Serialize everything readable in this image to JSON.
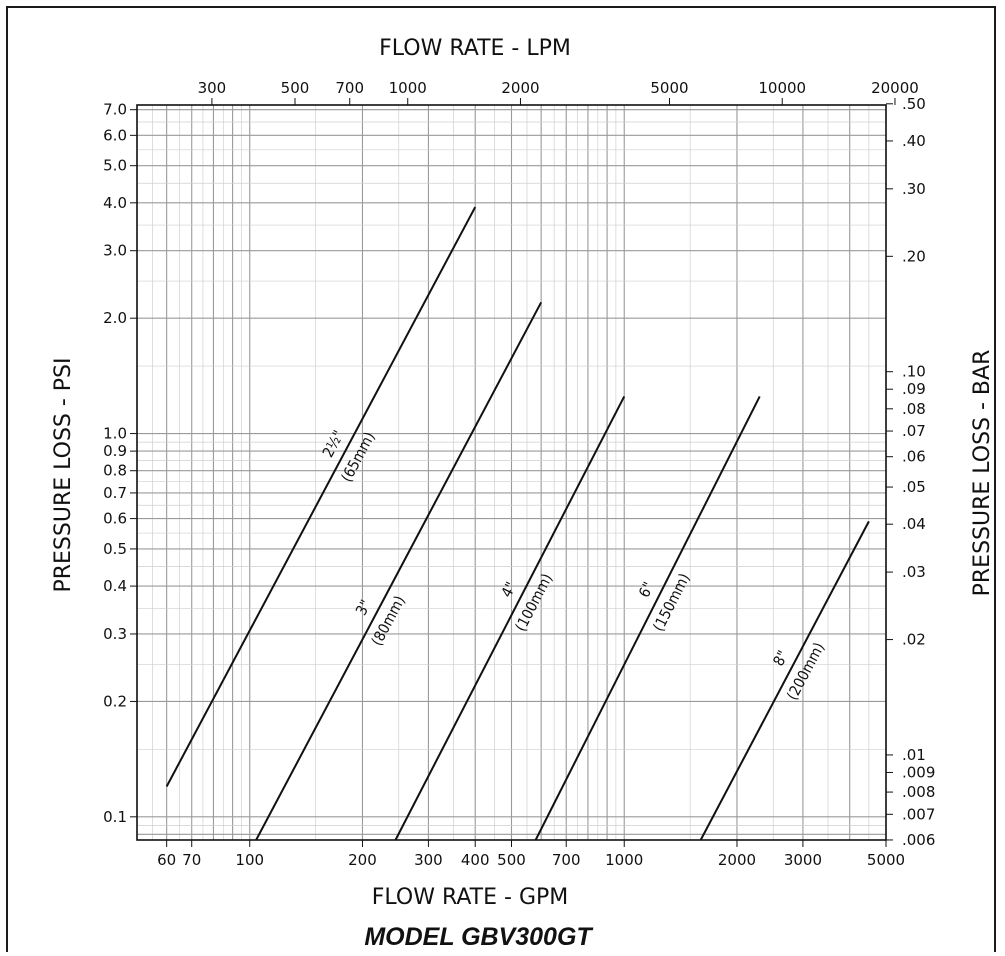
{
  "chart_data": {
    "type": "line",
    "title": "MODEL GBV300GT",
    "xlabel": "FLOW RATE - GPM",
    "ylabel": "PRESSURE LOSS - PSI",
    "x2label": "FLOW RATE - LPM",
    "y2label": "PRESSURE LOSS - BAR",
    "x_scale": "log",
    "y_scale": "log",
    "xlim": [
      50,
      5000
    ],
    "ylim": [
      0.087,
      7.2
    ],
    "grid": true,
    "x_ticks": [
      60,
      70,
      100,
      200,
      300,
      400,
      500,
      700,
      1000,
      2000,
      3000,
      5000
    ],
    "x_tick_labels": [
      "60",
      "70",
      "100",
      "200",
      "300",
      "400",
      "500",
      "700",
      "1000",
      "2000",
      "3000",
      "5000"
    ],
    "y_ticks": [
      0.1,
      0.2,
      0.3,
      0.4,
      0.5,
      0.6,
      0.7,
      0.8,
      0.9,
      1.0,
      2.0,
      3.0,
      4.0,
      5.0,
      6.0,
      7.0
    ],
    "y_tick_labels": [
      "0.1",
      "0.2",
      "0.3",
      "0.4",
      "0.5",
      "0.6",
      "0.7",
      "0.8",
      "0.9",
      "1.0",
      "2.0",
      "3.0",
      "4.0",
      "5.0",
      "6.0",
      "7.0"
    ],
    "x2_ticks": [
      300,
      500,
      700,
      1000,
      2000,
      5000,
      10000,
      20000
    ],
    "x2_tick_labels": [
      "300",
      "500",
      "700",
      "1000",
      "2000",
      "5000",
      "10000",
      "20000"
    ],
    "y2_ticks": [
      0.006,
      0.007,
      0.008,
      0.009,
      0.01,
      0.02,
      0.03,
      0.04,
      0.05,
      0.06,
      0.07,
      0.08,
      0.09,
      0.1,
      0.2,
      0.3,
      0.4,
      0.5
    ],
    "y2_tick_labels": [
      ".006",
      ".007",
      ".008",
      ".009",
      ".01",
      ".02",
      ".03",
      ".04",
      ".05",
      ".06",
      ".07",
      ".08",
      ".09",
      ".10",
      ".20",
      ".30",
      ".40",
      ".50"
    ],
    "series": [
      {
        "name": "2½\"",
        "name2": "(65mm)",
        "x": [
          60,
          400
        ],
        "y": [
          0.12,
          3.9
        ]
      },
      {
        "name": "3\"",
        "name2": "(80mm)",
        "x": [
          104,
          600
        ],
        "y": [
          0.087,
          2.2
        ]
      },
      {
        "name": "4\"",
        "name2": "(100mm)",
        "x": [
          245,
          1000
        ],
        "y": [
          0.087,
          1.25
        ]
      },
      {
        "name": "6\"",
        "name2": "(150mm)",
        "x": [
          580,
          2300
        ],
        "y": [
          0.087,
          1.25
        ]
      },
      {
        "name": "8\"",
        "name2": "(200mm)",
        "x": [
          1600,
          4500
        ],
        "y": [
          0.087,
          0.59
        ]
      }
    ]
  }
}
